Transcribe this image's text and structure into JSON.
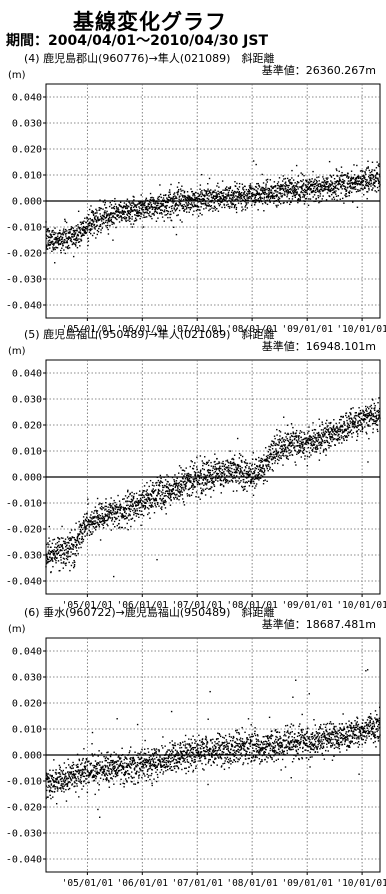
{
  "title": "基線変化グラフ",
  "period": "期間：2004/04/01～2010/04/30 JST",
  "chart_data": [
    {
      "type": "scatter",
      "title": "(4) 鹿児島郡山(960776)→隼人(021089)　斜距離",
      "baseline": "基準値：26360.267m",
      "unit": "(m)",
      "xlim": [
        "2004-04-01",
        "2010-04-30"
      ],
      "ylim": [
        -0.045,
        0.045
      ],
      "yticks": [
        "0.040",
        "0.030",
        "0.020",
        "0.010",
        "0.000",
        "-0.010",
        "-0.020",
        "-0.030",
        "-0.040"
      ],
      "xticks": [
        "'05/01/01",
        "'06/01/01",
        "'07/01/01",
        "'08/01/01",
        "'09/01/01",
        "'10/01/01"
      ],
      "grid": true,
      "trend": [
        [
          "2004-04-01",
          -0.015
        ],
        [
          "2004-10-01",
          -0.014
        ],
        [
          "2005-04-01",
          -0.006
        ],
        [
          "2006-04-01",
          -0.002
        ],
        [
          "2007-04-01",
          0.001
        ],
        [
          "2008-04-01",
          0.003
        ],
        [
          "2009-04-01",
          0.005
        ],
        [
          "2010-04-30",
          0.009
        ]
      ],
      "noise": 0.0025
    },
    {
      "type": "scatter",
      "title": "(5) 鹿児島福山(950489)→隼人(021089)　斜距離",
      "baseline": "基準値：16948.101m",
      "unit": "(m)",
      "xlim": [
        "2004-04-01",
        "2010-04-30"
      ],
      "ylim": [
        -0.045,
        0.045
      ],
      "yticks": [
        "0.040",
        "0.030",
        "0.020",
        "0.010",
        "0.000",
        "-0.010",
        "-0.020",
        "-0.030",
        "-0.040"
      ],
      "xticks": [
        "'05/01/01",
        "'06/01/01",
        "'07/01/01",
        "'08/01/01",
        "'09/01/01",
        "'10/01/01"
      ],
      "grid": true,
      "trend": [
        [
          "2004-04-01",
          -0.03
        ],
        [
          "2004-10-01",
          -0.027
        ],
        [
          "2005-01-01",
          -0.018
        ],
        [
          "2006-01-01",
          -0.01
        ],
        [
          "2007-01-01",
          0.0
        ],
        [
          "2007-10-01",
          0.002
        ],
        [
          "2008-01-01",
          0.0
        ],
        [
          "2008-07-01",
          0.011
        ],
        [
          "2009-04-01",
          0.015
        ],
        [
          "2010-04-30",
          0.024
        ]
      ],
      "noise": 0.003
    },
    {
      "type": "scatter",
      "title": "(6) 垂水(960722)→鹿児島福山(950489)　斜距離",
      "baseline": "基準値：18687.481m",
      "unit": "(m)",
      "xlim": [
        "2004-04-01",
        "2010-04-30"
      ],
      "ylim": [
        -0.045,
        0.045
      ],
      "yticks": [
        "0.040",
        "0.030",
        "0.020",
        "0.010",
        "0.000",
        "-0.010",
        "-0.020",
        "-0.030",
        "-0.040"
      ],
      "xticks": [
        "'05/01/01",
        "'06/01/01",
        "'07/01/01",
        "'08/01/01",
        "'09/01/01",
        "'10/01/01"
      ],
      "grid": true,
      "trend": [
        [
          "2004-04-01",
          -0.012
        ],
        [
          "2005-01-01",
          -0.006
        ],
        [
          "2006-01-01",
          -0.004
        ],
        [
          "2007-01-01",
          0.001
        ],
        [
          "2008-01-01",
          0.003
        ],
        [
          "2009-01-01",
          0.005
        ],
        [
          "2010-04-30",
          0.011
        ]
      ],
      "noise": 0.003
    }
  ]
}
